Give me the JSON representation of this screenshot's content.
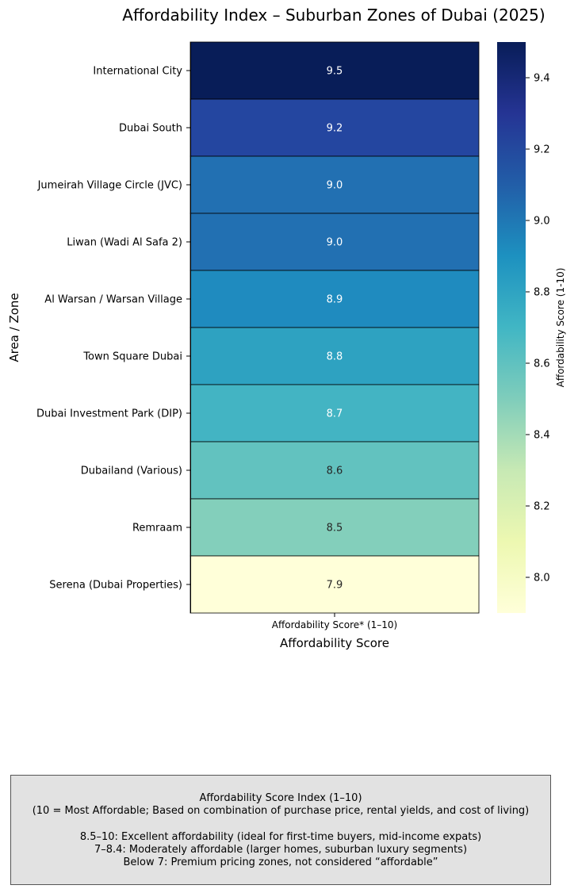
{
  "chart_data": {
    "type": "heatmap",
    "title": "Affordability Index – Suburban Zones of Dubai (2025)",
    "xlabel": "Affordability Score",
    "ylabel": "Area / Zone",
    "column": "Affordability Score* (1–10)",
    "rows": [
      {
        "label": "International City",
        "value": 9.5,
        "color": "#081d58",
        "text_color": "#ffffff"
      },
      {
        "label": "Dubai South",
        "value": 9.2,
        "color": "#2446a0",
        "text_color": "#ffffff"
      },
      {
        "label": "Jumeirah Village Circle (JVC)",
        "value": 9.0,
        "color": "#2270b2",
        "text_color": "#ffffff"
      },
      {
        "label": "Liwan (Wadi Al Safa 2)",
        "value": 9.0,
        "color": "#2270b2",
        "text_color": "#ffffff"
      },
      {
        "label": "Al Warsan / Warsan Village",
        "value": 8.9,
        "color": "#1f8bbf",
        "text_color": "#ffffff"
      },
      {
        "label": "Town Square Dubai",
        "value": 8.8,
        "color": "#2ea2c1",
        "text_color": "#ffffff"
      },
      {
        "label": "Dubai Investment Park (DIP)",
        "value": 8.7,
        "color": "#43b4c3",
        "text_color": "#ffffff"
      },
      {
        "label": "Dubailand (Various)",
        "value": 8.6,
        "color": "#62c2bf",
        "text_color": "#262626"
      },
      {
        "label": "Remraam",
        "value": 8.5,
        "color": "#83cfbb",
        "text_color": "#262626"
      },
      {
        "label": "Serena (Dubai Properties)",
        "value": 7.9,
        "color": "#ffffd9",
        "text_color": "#262626"
      }
    ],
    "colorbar": {
      "label": "Affordability Score (1-10)",
      "range": [
        7.9,
        9.5
      ],
      "ticks": [
        "8.0",
        "8.2",
        "8.4",
        "8.6",
        "8.8",
        "9.0",
        "9.2",
        "9.4"
      ],
      "colormap": "YlGnBu",
      "stops": [
        "#ffffd9",
        "#edf8b1",
        "#c7e9b4",
        "#7fcdbb",
        "#41b6c4",
        "#1d91c0",
        "#225ea8",
        "#253494",
        "#081d58"
      ]
    }
  },
  "note": {
    "title": "Affordability Score Index (1–10)",
    "subtitle": "(10 = Most Affordable; Based on combination of purchase price, rental yields, and cost of living)",
    "lines": [
      "8.5–10: Excellent affordability (ideal for first-time buyers, mid-income expats)",
      "7–8.4: Moderately affordable (larger homes, suburban luxury segments)",
      "Below 7: Premium pricing zones, not considered “affordable”"
    ]
  }
}
